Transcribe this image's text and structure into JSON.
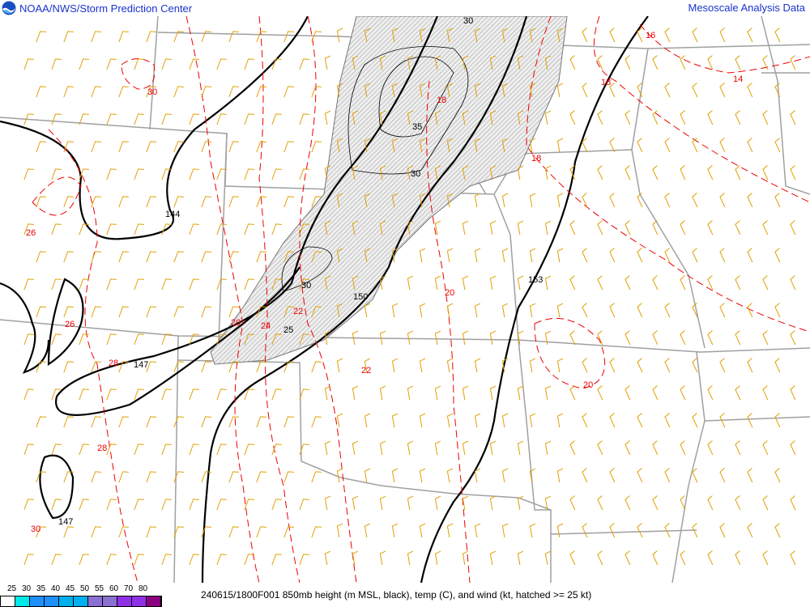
{
  "header": {
    "left_title": "NOAA/NWS/Storm Prediction Center",
    "right_title": "Mesoscale Analysis Data",
    "logo": "noaa-logo"
  },
  "footer": {
    "caption": "240615/1800F001 850mb height (m MSL, black), temp (C), and wind (kt, hatched >= 25 kt)"
  },
  "colorbar": {
    "labels": [
      "25",
      "30",
      "35",
      "40",
      "45",
      "50",
      "55",
      "60",
      "70",
      "80"
    ],
    "colors": [
      "#ffffff",
      "#00e8e8",
      "#1e90ff",
      "#1e90ff",
      "#00b0f0",
      "#00b0f0",
      "#8a70d0",
      "#8a70d0",
      "#9030e8",
      "#9030e8",
      "#8b0080"
    ]
  },
  "map": {
    "colors": {
      "height": "#000000",
      "temp": "#e00000",
      "wind": "#e0a000",
      "border": "#a0a0a0",
      "hatch": "#d8d8d8"
    },
    "height_labels": [
      "144",
      "147",
      "150",
      "153",
      "147"
    ],
    "temp_labels": [
      "30",
      "26",
      "26",
      "28",
      "28",
      "30",
      "24",
      "22",
      "22",
      "20",
      "20",
      "18",
      "18",
      "16",
      "14",
      "18",
      "20"
    ],
    "wind_labels": [
      "30",
      "35",
      "30",
      "30",
      "25"
    ]
  }
}
